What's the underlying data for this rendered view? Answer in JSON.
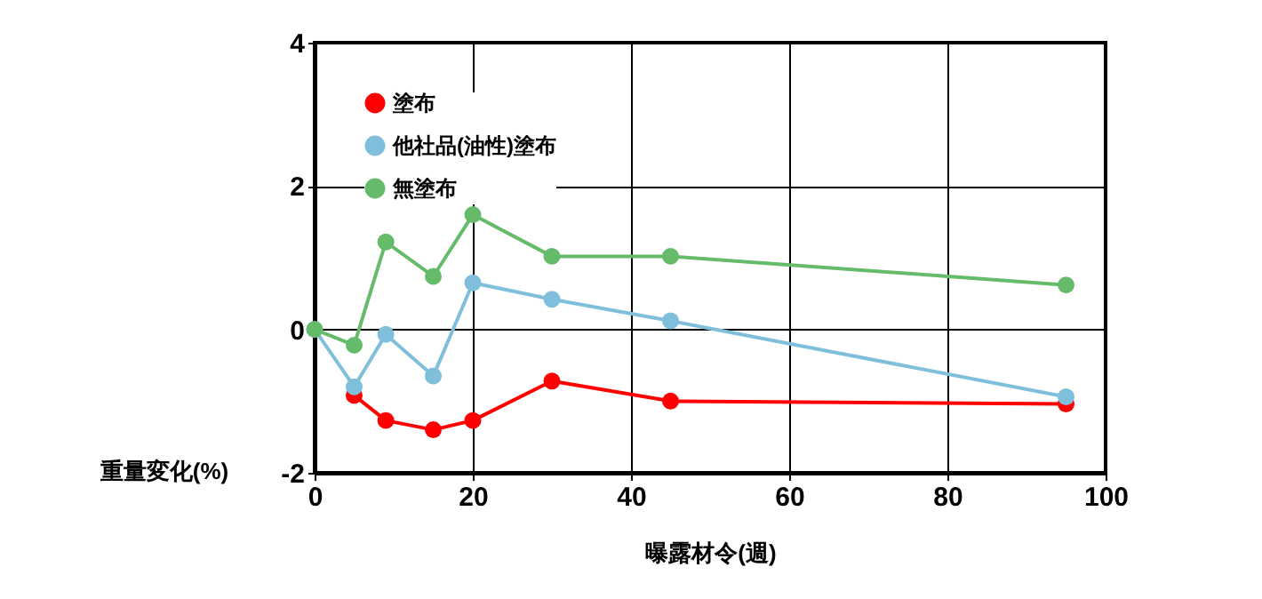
{
  "chart_data": {
    "type": "line",
    "xlabel": "曝露材令(週)",
    "ylabel": "重量変化(%)",
    "x": [
      0,
      5,
      9,
      15,
      20,
      30,
      45,
      95
    ],
    "series": [
      {
        "name": "塗布",
        "color": "#ff0000",
        "values": [
          null,
          -0.92,
          -1.27,
          -1.4,
          -1.27,
          -0.72,
          -1.0,
          -1.04
        ]
      },
      {
        "name": "他社品(油性)塗布",
        "color": "#7fbfdc",
        "values": [
          0,
          -0.8,
          -0.07,
          -0.65,
          0.65,
          0.42,
          0.12,
          -0.94
        ]
      },
      {
        "name": "無塗布",
        "color": "#66bb6a",
        "values": [
          0,
          -0.22,
          1.22,
          0.74,
          1.6,
          1.02,
          1.02,
          0.62
        ]
      }
    ],
    "xlim": [
      0,
      100
    ],
    "xticks": [
      0,
      20,
      40,
      60,
      80,
      100
    ],
    "ylim": [
      -2,
      4
    ],
    "yticks": [
      -2,
      0,
      2,
      4
    ],
    "grid": true,
    "legend": "top left",
    "marker": "circle",
    "line_style": "solid"
  }
}
